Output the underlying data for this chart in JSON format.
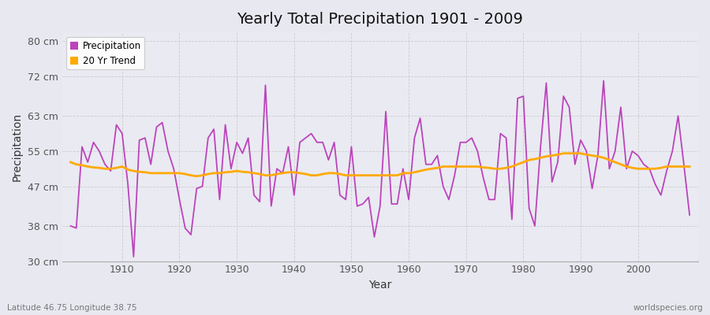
{
  "title": "Yearly Total Precipitation 1901 - 2009",
  "xlabel": "Year",
  "ylabel": "Precipitation",
  "subtitle_left": "Latitude 46.75 Longitude 38.75",
  "subtitle_right": "worldspecies.org",
  "background_color": "#e8e8f0",
  "plot_bg_color": "#eaeaf2",
  "line_color_precip": "#bb44bb",
  "line_color_trend": "#ffaa00",
  "ylim": [
    30,
    82
  ],
  "yticks": [
    30,
    38,
    47,
    55,
    63,
    72,
    80
  ],
  "ytick_labels": [
    "30 cm",
    "38 cm",
    "47 cm",
    "55 cm",
    "63 cm",
    "72 cm",
    "80 cm"
  ],
  "years": [
    1901,
    1902,
    1903,
    1904,
    1905,
    1906,
    1907,
    1908,
    1909,
    1910,
    1911,
    1912,
    1913,
    1914,
    1915,
    1916,
    1917,
    1918,
    1919,
    1920,
    1921,
    1922,
    1923,
    1924,
    1925,
    1926,
    1927,
    1928,
    1929,
    1930,
    1931,
    1932,
    1933,
    1934,
    1935,
    1936,
    1937,
    1938,
    1939,
    1940,
    1941,
    1942,
    1943,
    1944,
    1945,
    1946,
    1947,
    1948,
    1949,
    1950,
    1951,
    1952,
    1953,
    1954,
    1955,
    1956,
    1957,
    1958,
    1959,
    1960,
    1961,
    1962,
    1963,
    1964,
    1965,
    1966,
    1967,
    1968,
    1969,
    1970,
    1971,
    1972,
    1973,
    1974,
    1975,
    1976,
    1977,
    1978,
    1979,
    1980,
    1981,
    1982,
    1983,
    1984,
    1985,
    1986,
    1987,
    1988,
    1989,
    1990,
    1991,
    1992,
    1993,
    1994,
    1995,
    1996,
    1997,
    1998,
    1999,
    2000,
    2001,
    2002,
    2003,
    2004,
    2005,
    2006,
    2007,
    2008,
    2009
  ],
  "precip": [
    38.0,
    37.5,
    56.0,
    52.5,
    57.0,
    55.0,
    52.0,
    50.5,
    61.0,
    59.0,
    47.5,
    31.0,
    57.5,
    58.0,
    52.0,
    60.5,
    61.5,
    55.0,
    51.0,
    44.0,
    37.5,
    36.0,
    46.5,
    47.0,
    58.0,
    60.0,
    44.0,
    61.0,
    51.0,
    57.0,
    54.5,
    58.0,
    45.0,
    43.5,
    70.0,
    42.5,
    51.0,
    50.0,
    56.0,
    45.0,
    57.0,
    58.0,
    59.0,
    57.0,
    57.0,
    53.0,
    57.0,
    45.0,
    44.0,
    56.0,
    42.5,
    43.0,
    44.5,
    35.5,
    42.5,
    64.0,
    43.0,
    43.0,
    51.0,
    44.0,
    58.0,
    62.5,
    52.0,
    52.0,
    54.0,
    47.0,
    44.0,
    49.5,
    57.0,
    57.0,
    58.0,
    55.0,
    49.0,
    44.0,
    44.0,
    59.0,
    58.0,
    39.5,
    67.0,
    67.5,
    42.0,
    38.0,
    56.0,
    70.5,
    48.0,
    52.5,
    67.5,
    65.0,
    52.0,
    57.5,
    55.0,
    46.5,
    54.0,
    71.0,
    51.0,
    55.0,
    65.0,
    51.0,
    55.0,
    54.0,
    52.0,
    51.0,
    47.5,
    45.0,
    50.5,
    55.0,
    63.0,
    52.0,
    40.5
  ],
  "trend": [
    52.5,
    52.0,
    51.8,
    51.5,
    51.3,
    51.2,
    51.0,
    51.0,
    51.2,
    51.5,
    50.8,
    50.5,
    50.3,
    50.2,
    50.0,
    50.0,
    50.0,
    50.0,
    50.0,
    50.0,
    49.8,
    49.5,
    49.3,
    49.5,
    49.8,
    50.0,
    50.0,
    50.2,
    50.3,
    50.5,
    50.3,
    50.2,
    50.0,
    49.8,
    49.5,
    49.5,
    49.8,
    50.0,
    50.2,
    50.2,
    50.0,
    49.8,
    49.5,
    49.5,
    49.8,
    50.0,
    50.0,
    49.8,
    49.5,
    49.5,
    49.5,
    49.5,
    49.5,
    49.5,
    49.5,
    49.5,
    49.5,
    49.5,
    50.0,
    50.0,
    50.2,
    50.5,
    50.8,
    51.0,
    51.2,
    51.5,
    51.5,
    51.5,
    51.5,
    51.5,
    51.5,
    51.5,
    51.3,
    51.2,
    51.0,
    51.0,
    51.2,
    51.5,
    52.0,
    52.5,
    53.0,
    53.2,
    53.5,
    53.8,
    54.0,
    54.2,
    54.5,
    54.5,
    54.5,
    54.5,
    54.2,
    54.0,
    53.8,
    53.5,
    53.0,
    52.5,
    52.0,
    51.5,
    51.2,
    51.0,
    51.0,
    51.0,
    51.0,
    51.2,
    51.5,
    51.5,
    51.5,
    51.5,
    51.5
  ]
}
